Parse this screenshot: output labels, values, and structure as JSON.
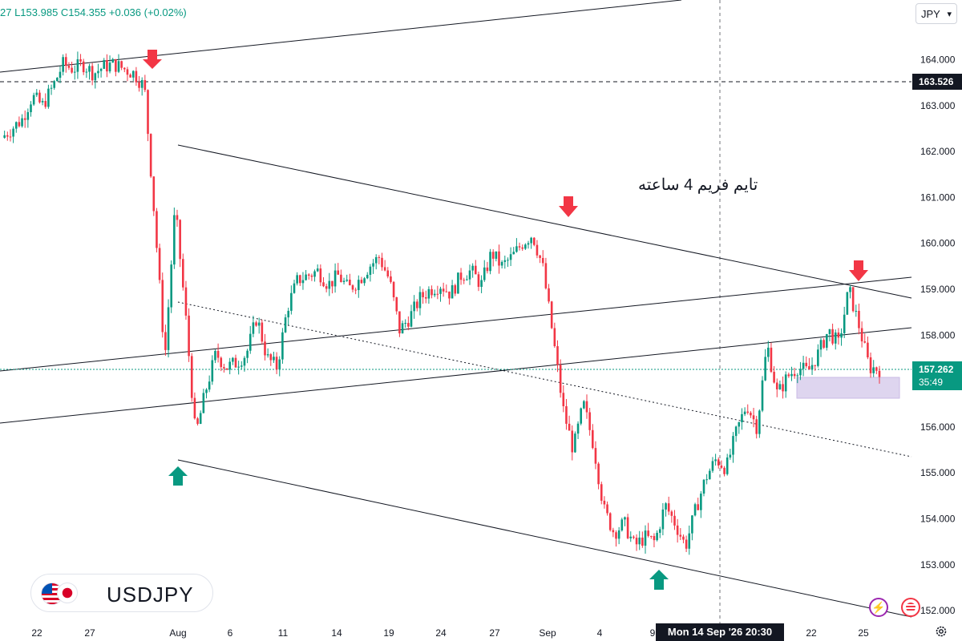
{
  "header": {
    "ohlc_text": "27  L153.985  C154.355  +0.036 (+0.02%)"
  },
  "currency": {
    "label": "JPY"
  },
  "symbol": {
    "name": "USDJPY"
  },
  "annotation_text": "تایم فریم 4 ساعته",
  "crosshair": {
    "label": "Mon 14 Sep '26   20:30"
  },
  "price_tags": {
    "hline_price": "163.526",
    "last_price": "157.262",
    "countdown": "35:49"
  },
  "colors": {
    "up": "#089981",
    "down": "#f23645",
    "line": "#131722",
    "zone": "#d1c4e9",
    "grid_text": "#787b86"
  },
  "icons": [
    "settings-icon",
    "bolt-icon",
    "news-flag-icon",
    "chevron-down-icon"
  ],
  "chart_data": {
    "type": "candlestick",
    "title": "",
    "xlabel": "",
    "ylabel": "",
    "x_tick_labels": [
      "22",
      "27",
      "Aug",
      "6",
      "11",
      "14",
      "19",
      "24",
      "27",
      "Sep",
      "4",
      "9",
      "22",
      "25"
    ],
    "y_tick_labels": [
      "152.000",
      "153.000",
      "154.000",
      "155.000",
      "156.000",
      "157.000",
      "158.000",
      "159.000",
      "160.000",
      "161.000",
      "162.000",
      "163.000",
      "164.000"
    ],
    "ylim": [
      151.8,
      165.2
    ],
    "close_path": [
      162.3,
      162.5,
      162.7,
      163.2,
      163.0,
      163.4,
      163.9,
      163.8,
      163.9,
      163.7,
      163.85,
      163.9,
      163.8,
      163.7,
      163.4,
      160.5,
      157.5,
      160.8,
      158.5,
      155.8,
      156.8,
      157.6,
      157.3,
      157.4,
      157.6,
      158.4,
      157.5,
      157.3,
      158.6,
      159.2,
      159.3,
      159.4,
      159.1,
      159.3,
      159.0,
      159.2,
      159.5,
      159.7,
      159.2,
      158.1,
      158.4,
      158.8,
      159.0,
      159.1,
      158.9,
      159.3,
      159.4,
      159.1,
      159.8,
      159.5,
      159.7,
      160.0,
      160.2,
      159.5,
      158.0,
      156.4,
      155.5,
      156.5,
      155.6,
      154.2,
      153.7,
      153.9,
      153.4,
      153.6,
      153.5,
      154.3,
      153.9,
      153.4,
      154.2,
      154.9,
      155.3,
      155.1,
      155.9,
      156.5,
      156.0,
      157.8,
      156.7,
      157.1,
      157.3,
      157.2,
      157.6,
      158.1,
      157.8,
      159.0,
      158.2,
      157.3,
      157.26
    ],
    "annotations": [
      "down-arrow",
      "down-arrow",
      "down-arrow",
      "up-arrow",
      "up-arrow"
    ],
    "legend": "none",
    "grid": false
  }
}
